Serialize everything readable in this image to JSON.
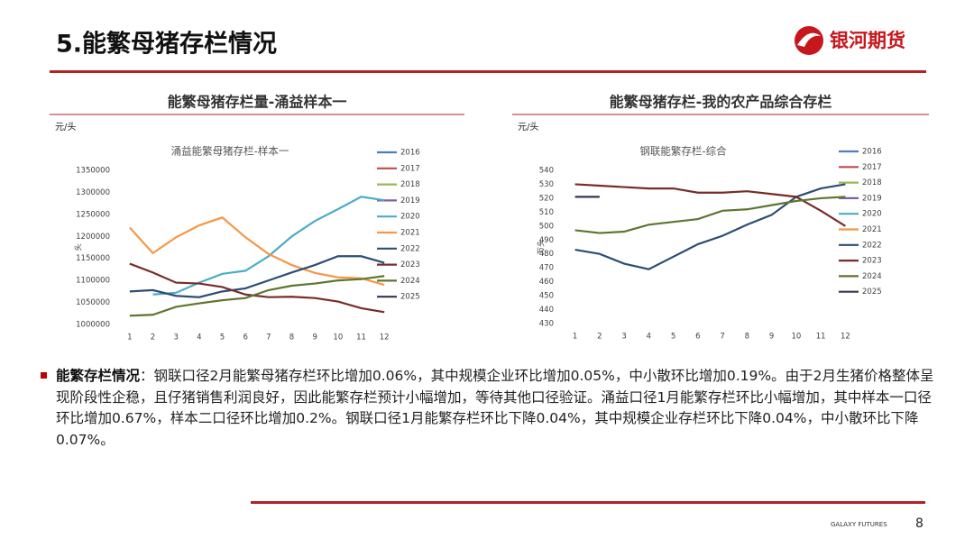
{
  "header": {
    "title": "5.能繁母猪存栏情况",
    "logo": "银河期货"
  },
  "chart_data": [
    {
      "type": "line",
      "panel_title": "能繁母猪存栏量-涌益样本一",
      "unit": "元/头",
      "title": "涌益能繁母猪存栏-样本一",
      "ylabel": "头",
      "categories": [
        "1",
        "2",
        "3",
        "4",
        "5",
        "6",
        "7",
        "8",
        "9",
        "10",
        "11",
        "12"
      ],
      "ylim": [
        1000000,
        1350000
      ],
      "yticks": [
        1000000,
        1050000,
        1100000,
        1150000,
        1200000,
        1250000,
        1300000,
        1350000
      ],
      "series": [
        {
          "name": "2016",
          "color": "#4a7ebb",
          "values": [
            null,
            null,
            null,
            null,
            null,
            null,
            null,
            null,
            null,
            null,
            null,
            null
          ]
        },
        {
          "name": "2017",
          "color": "#be4b48",
          "values": [
            null,
            null,
            null,
            null,
            null,
            null,
            null,
            null,
            null,
            null,
            null,
            null
          ]
        },
        {
          "name": "2018",
          "color": "#98b954",
          "values": [
            null,
            null,
            null,
            null,
            null,
            null,
            null,
            null,
            null,
            null,
            null,
            null
          ]
        },
        {
          "name": "2019",
          "color": "#7d60a0",
          "values": [
            null,
            null,
            null,
            null,
            null,
            null,
            null,
            null,
            null,
            null,
            null,
            null
          ]
        },
        {
          "name": "2020",
          "color": "#4bacc6",
          "values": [
            null,
            1068000,
            1072000,
            1095000,
            1115000,
            1122000,
            1155000,
            1200000,
            1235000,
            1262000,
            1290000,
            1282000
          ]
        },
        {
          "name": "2021",
          "color": "#f79646",
          "values": [
            1220000,
            1162000,
            1198000,
            1225000,
            1243000,
            1198000,
            1160000,
            1135000,
            1117000,
            1107000,
            1105000,
            1090000
          ]
        },
        {
          "name": "2022",
          "color": "#2c4d75",
          "values": [
            1075000,
            1078000,
            1065000,
            1062000,
            1075000,
            1082000,
            1100000,
            1118000,
            1135000,
            1155000,
            1155000,
            1140000
          ]
        },
        {
          "name": "2023",
          "color": "#772c2a",
          "values": [
            1138000,
            1118000,
            1095000,
            1093000,
            1085000,
            1068000,
            1062000,
            1063000,
            1060000,
            1052000,
            1037000,
            1028000
          ]
        },
        {
          "name": "2024",
          "color": "#5f7530",
          "values": [
            1020000,
            1022000,
            1040000,
            1048000,
            1055000,
            1060000,
            1078000,
            1088000,
            1093000,
            1100000,
            1103000,
            1110000
          ]
        },
        {
          "name": "2025",
          "color": "#3e3151",
          "values": [
            null,
            null,
            null,
            null,
            null,
            null,
            null,
            null,
            null,
            null,
            null,
            null
          ]
        }
      ]
    },
    {
      "type": "line",
      "panel_title": "能繁母猪存栏-我的农产品综合存栏",
      "unit": "元/头",
      "title": "钢联能繁存栏-综合",
      "ylabel": "万头",
      "categories": [
        "1",
        "2",
        "3",
        "4",
        "5",
        "6",
        "7",
        "8",
        "9",
        "10",
        "11",
        "12"
      ],
      "ylim": [
        430,
        540
      ],
      "yticks": [
        430,
        440,
        450,
        460,
        470,
        480,
        490,
        500,
        510,
        520,
        530,
        540
      ],
      "series": [
        {
          "name": "2016",
          "color": "#4a7ebb",
          "values": [
            null,
            null,
            null,
            null,
            null,
            null,
            null,
            null,
            null,
            null,
            null,
            null
          ]
        },
        {
          "name": "2017",
          "color": "#be4b48",
          "values": [
            null,
            null,
            null,
            null,
            null,
            null,
            null,
            null,
            null,
            null,
            null,
            null
          ]
        },
        {
          "name": "2018",
          "color": "#98b954",
          "values": [
            null,
            null,
            null,
            null,
            null,
            null,
            null,
            null,
            null,
            null,
            null,
            null
          ]
        },
        {
          "name": "2019",
          "color": "#7d60a0",
          "values": [
            null,
            null,
            null,
            null,
            null,
            null,
            null,
            null,
            null,
            null,
            null,
            null
          ]
        },
        {
          "name": "2020",
          "color": "#4bacc6",
          "values": [
            null,
            null,
            null,
            null,
            null,
            null,
            null,
            null,
            null,
            null,
            null,
            null
          ]
        },
        {
          "name": "2021",
          "color": "#f79646",
          "values": [
            null,
            null,
            null,
            null,
            null,
            null,
            null,
            null,
            null,
            null,
            null,
            null
          ]
        },
        {
          "name": "2022",
          "color": "#2c4d75",
          "values": [
            483,
            480,
            473,
            469,
            478,
            487,
            493,
            501,
            508,
            521,
            527,
            530
          ]
        },
        {
          "name": "2023",
          "color": "#772c2a",
          "values": [
            530,
            529,
            528,
            527,
            527,
            524,
            524,
            525,
            523,
            521,
            511,
            500
          ]
        },
        {
          "name": "2024",
          "color": "#5f7530",
          "values": [
            497,
            495,
            496,
            501,
            503,
            505,
            511,
            512,
            515,
            518,
            520,
            521
          ]
        },
        {
          "name": "2025",
          "color": "#3e3151",
          "values": [
            521,
            521,
            null,
            null,
            null,
            null,
            null,
            null,
            null,
            null,
            null,
            null
          ]
        }
      ]
    }
  ],
  "bullet": {
    "label": "能繁存栏情况",
    "text": "：钢联口径2月能繁母猪存栏环比增加0.06%，其中规模企业环比增加0.05%，中小散环比增加0.19%。由于2月生猪价格整体呈现阶段性企稳，且仔猪销售利润良好，因此能繁存栏预计小幅增加，等待其他口径验证。涌益口径1月能繁存栏环比小幅增加，其中样本一口径环比增加0.67%，样本二口径环比增加0.2%。钢联口径1月能繁存栏环比下降0.04%，其中规模企业存栏环比下降0.04%，中小散环比下降0.07%。"
  },
  "footer": {
    "brand": "GALAXY FUTURES",
    "page": "8"
  }
}
